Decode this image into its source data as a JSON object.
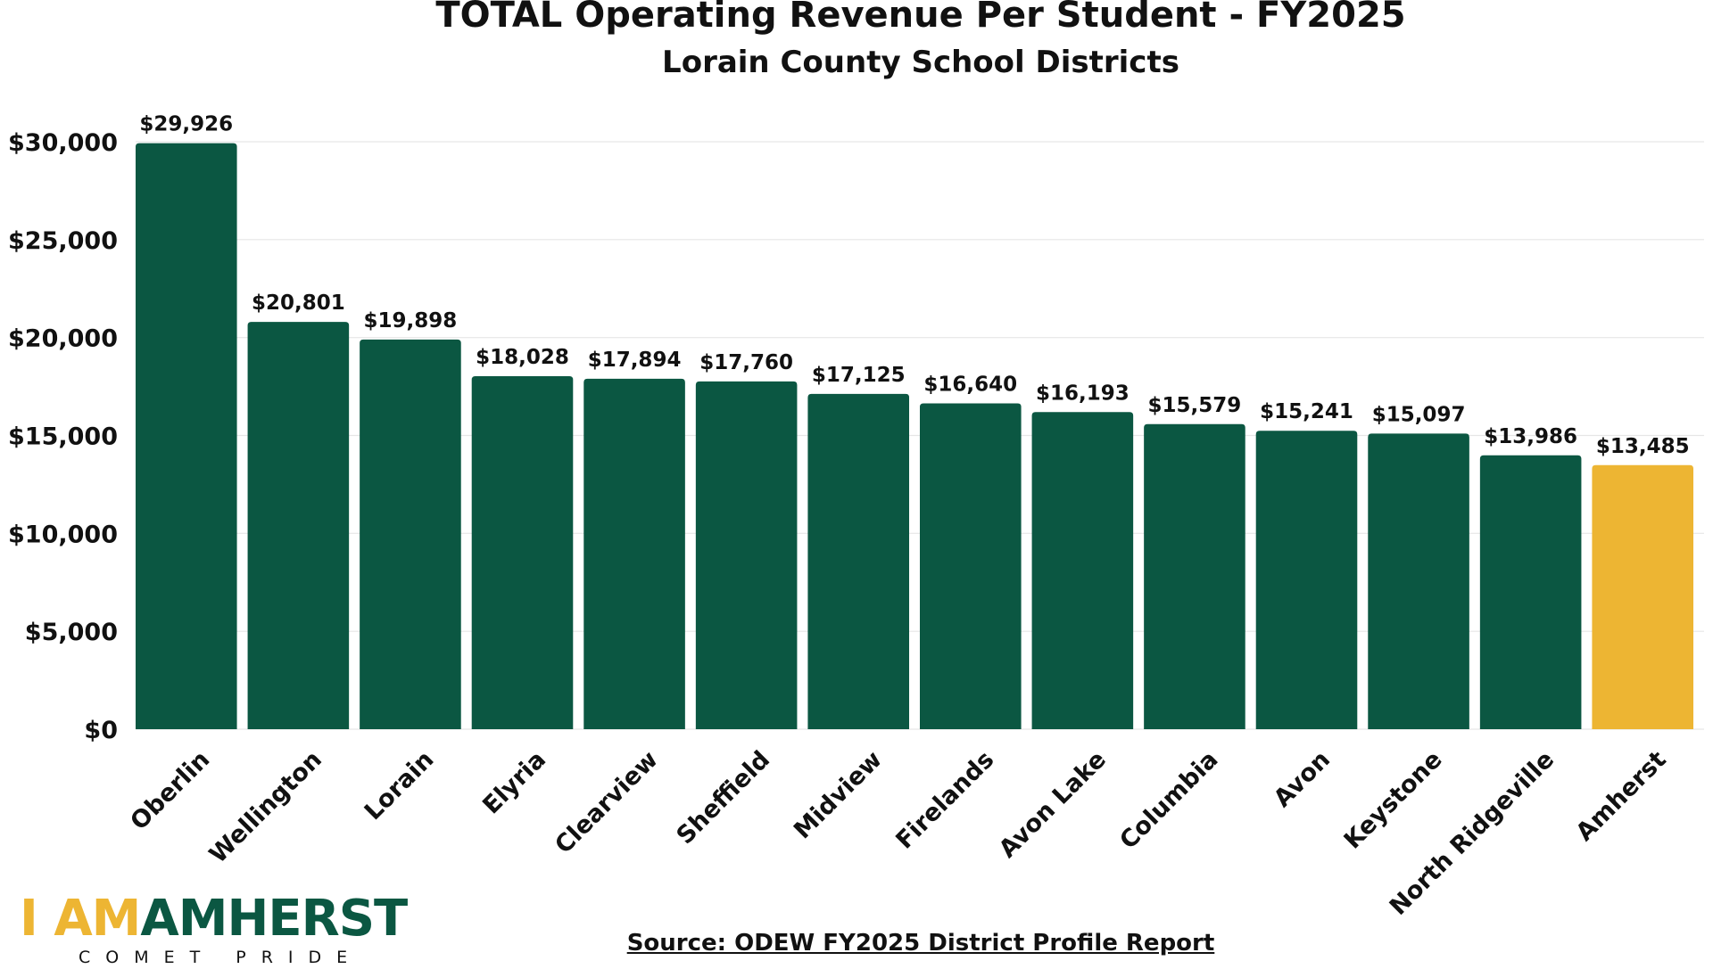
{
  "chart_data": {
    "type": "bar",
    "title": "TOTAL Operating Revenue Per Student - FY2025",
    "subtitle": "Lorain County School Districts",
    "xlabel": "",
    "ylabel": "",
    "categories": [
      "Oberlin",
      "Wellington",
      "Lorain",
      "Elyria",
      "Clearview",
      "Sheffield",
      "Midview",
      "Firelands",
      "Avon Lake",
      "Columbia",
      "Avon",
      "Keystone",
      "North Ridgeville",
      "Amherst"
    ],
    "values": [
      29926,
      20801,
      19898,
      18028,
      17894,
      17760,
      17125,
      16640,
      16193,
      15579,
      15241,
      15097,
      13986,
      13485
    ],
    "data_labels": [
      "$29,926",
      "$20,801",
      "$19,898",
      "$18,028",
      "$17,894",
      "$17,760",
      "$17,125",
      "$16,640",
      "$16,193",
      "$15,579",
      "$15,241",
      "$15,097",
      "$13,986",
      "$13,485"
    ],
    "highlight_category": "Amherst",
    "ylim": [
      0,
      30000
    ],
    "yticks": [
      0,
      5000,
      10000,
      15000,
      20000,
      25000,
      30000
    ],
    "ytick_labels": [
      "$0",
      "$5,000",
      "$10,000",
      "$15,000",
      "$20,000",
      "$25,000",
      "$30,000"
    ],
    "grid": true,
    "legend": "none",
    "colors": {
      "bar": "#0b5742",
      "highlight": "#edb533",
      "grid": "#e6e6e6"
    }
  },
  "source": "Source: ODEW FY2025 District Profile Report",
  "logo": {
    "iam": "I AM",
    "amherst": "AMHERST",
    "tagline": "COMET PRIDE"
  }
}
